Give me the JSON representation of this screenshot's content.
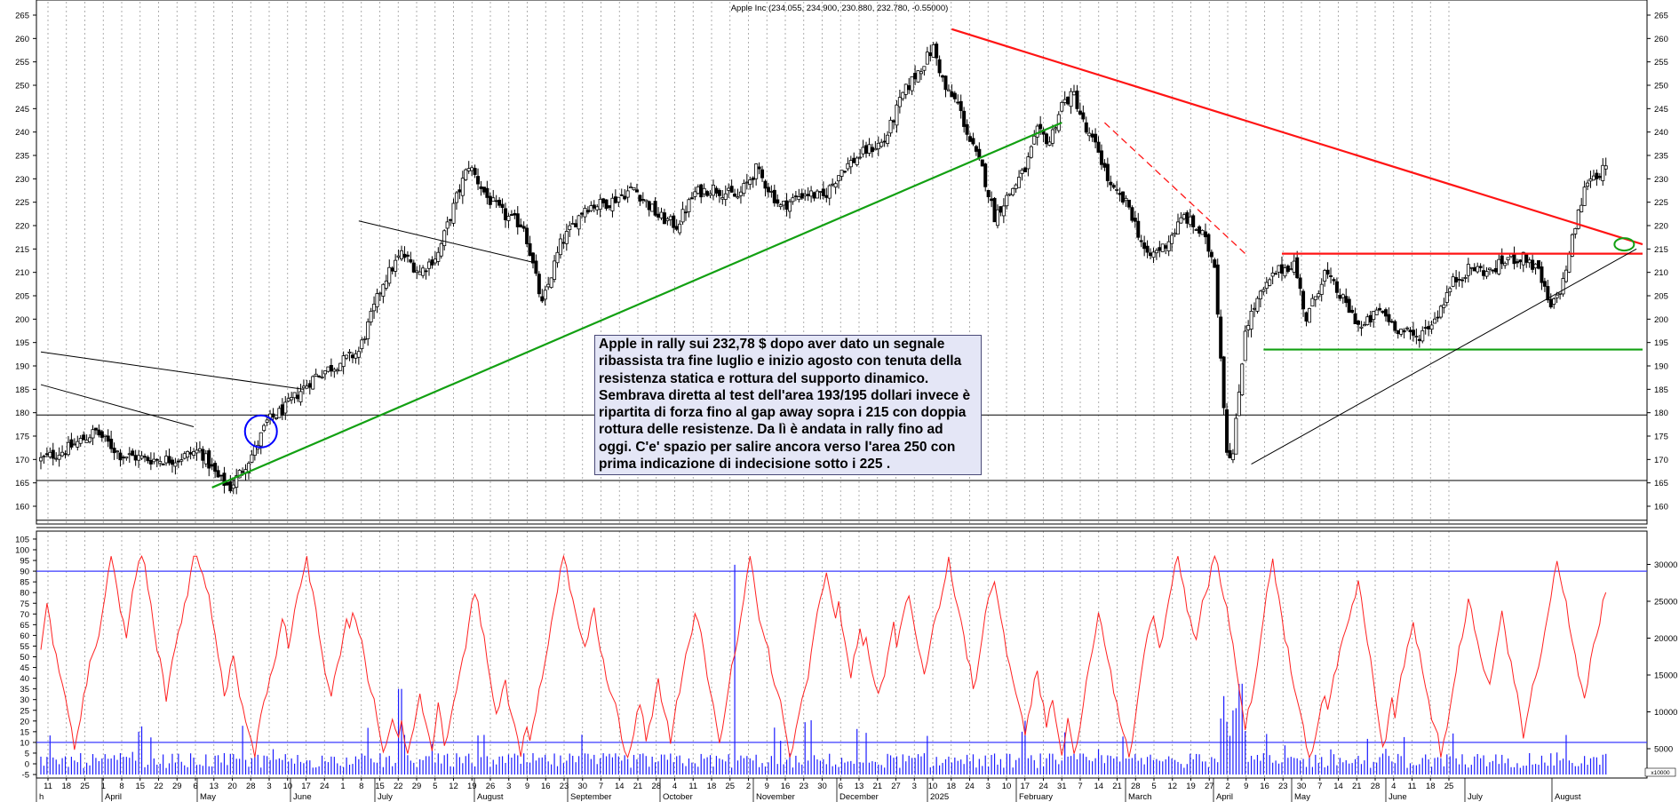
{
  "chart_data": {
    "type": "candlestick",
    "title": "Apple Inc (234.055, 234.900, 230.880, 232.780, -0.55000)",
    "price_axis": {
      "ylim": [
        155,
        267
      ],
      "ticks": [
        160,
        165,
        170,
        175,
        180,
        185,
        190,
        195,
        200,
        205,
        210,
        215,
        220,
        225,
        230,
        235,
        240,
        245,
        250,
        255,
        260,
        265
      ]
    },
    "oscillator_axis": {
      "left_ticks": [
        -5,
        0,
        5,
        10,
        15,
        20,
        25,
        30,
        35,
        40,
        45,
        50,
        55,
        60,
        65,
        70,
        75,
        80,
        85,
        90,
        95,
        100,
        105
      ],
      "right_ticks": [
        5000,
        10000,
        15000,
        20000,
        25000,
        30000
      ],
      "right_ticks_label": [
        "5000",
        "10000",
        "15000",
        "20000",
        "25000",
        "30000"
      ],
      "volume_scale_label": "x10000",
      "reference_levels": [
        10,
        90
      ]
    },
    "x_axis": {
      "day_labels": [
        "11",
        "18",
        "25",
        "1",
        "8",
        "15",
        "22",
        "29",
        "6",
        "13",
        "20",
        "28",
        "3",
        "10",
        "17",
        "24",
        "1",
        "8",
        "15",
        "22",
        "29",
        "5",
        "12",
        "19",
        "26",
        "3",
        "9",
        "16",
        "23",
        "30",
        "7",
        "14",
        "21",
        "28",
        "4",
        "11",
        "18",
        "25",
        "2",
        "9",
        "16",
        "23",
        "30",
        "6",
        "13",
        "21",
        "27",
        "3",
        "10",
        "18",
        "24",
        "3",
        "10",
        "17",
        "24",
        "31",
        "7",
        "14",
        "21",
        "28",
        "5",
        "12",
        "19",
        "27",
        "2",
        "9",
        "16",
        "23",
        "30",
        "7",
        "14",
        "21",
        "28",
        "4",
        "11",
        "18",
        "25"
      ],
      "month_labels": [
        "h",
        "April",
        "May",
        "June",
        "July",
        "August",
        "September",
        "October",
        "November",
        "December",
        "2025",
        "February",
        "March",
        "April",
        "May",
        "June",
        "July",
        "August"
      ]
    },
    "price_series": {
      "name": "Apple Inc",
      "close_path": [
        [
          0,
          170
        ],
        [
          8,
          172
        ],
        [
          18,
          176
        ],
        [
          26,
          171
        ],
        [
          36,
          170
        ],
        [
          44,
          170
        ],
        [
          52,
          172
        ],
        [
          58,
          166
        ],
        [
          62,
          164
        ],
        [
          66,
          168
        ],
        [
          70,
          172
        ],
        [
          74,
          178
        ],
        [
          80,
          181
        ],
        [
          84,
          184
        ],
        [
          90,
          188
        ],
        [
          96,
          190
        ],
        [
          104,
          193
        ],
        [
          112,
          208
        ],
        [
          118,
          214
        ],
        [
          124,
          210
        ],
        [
          130,
          214
        ],
        [
          136,
          226
        ],
        [
          140,
          233
        ],
        [
          146,
          226
        ],
        [
          152,
          222
        ],
        [
          158,
          220
        ],
        [
          164,
          203
        ],
        [
          170,
          216
        ],
        [
          178,
          224
        ],
        [
          186,
          225
        ],
        [
          194,
          228
        ],
        [
          202,
          222
        ],
        [
          208,
          220
        ],
        [
          214,
          227
        ],
        [
          220,
          228
        ],
        [
          228,
          226
        ],
        [
          234,
          232
        ],
        [
          242,
          224
        ],
        [
          250,
          227
        ],
        [
          256,
          226
        ],
        [
          262,
          232
        ],
        [
          270,
          236
        ],
        [
          276,
          238
        ],
        [
          282,
          248
        ],
        [
          288,
          254
        ],
        [
          292,
          258
        ],
        [
          296,
          249
        ],
        [
          300,
          246
        ],
        [
          304,
          238
        ],
        [
          308,
          232
        ],
        [
          312,
          222
        ],
        [
          318,
          228
        ],
        [
          322,
          232
        ],
        [
          326,
          240
        ],
        [
          330,
          238
        ],
        [
          334,
          246
        ],
        [
          338,
          248
        ],
        [
          342,
          240
        ],
        [
          346,
          236
        ],
        [
          350,
          228
        ],
        [
          356,
          224
        ],
        [
          362,
          213
        ],
        [
          368,
          216
        ],
        [
          374,
          222
        ],
        [
          380,
          218
        ],
        [
          384,
          212
        ],
        [
          388,
          172
        ],
        [
          390,
          171
        ],
        [
          394,
          198
        ],
        [
          398,
          204
        ],
        [
          404,
          210
        ],
        [
          410,
          212
        ],
        [
          414,
          200
        ],
        [
          420,
          210
        ],
        [
          426,
          204
        ],
        [
          432,
          198
        ],
        [
          438,
          202
        ],
        [
          444,
          198
        ],
        [
          450,
          196
        ],
        [
          456,
          200
        ],
        [
          462,
          208
        ],
        [
          468,
          211
        ],
        [
          474,
          210
        ],
        [
          480,
          213
        ],
        [
          486,
          213
        ],
        [
          490,
          210
        ],
        [
          494,
          202
        ],
        [
          498,
          208
        ],
        [
          502,
          220
        ],
        [
          506,
          230
        ],
        [
          512,
          232
        ]
      ]
    },
    "trendlines": [
      {
        "color": "#ff1414",
        "points": [
          [
            298,
            262
          ],
          [
            524,
            216
          ]
        ]
      },
      {
        "color": "#ff1414",
        "style": "dashed",
        "points": [
          [
            348,
            242
          ],
          [
            394,
            214
          ]
        ]
      },
      {
        "color": "#ff1414",
        "points": [
          [
            406,
            214
          ],
          [
            524,
            214
          ]
        ]
      },
      {
        "color": "#12a012",
        "points": [
          [
            400,
            193.5
          ],
          [
            524,
            193.5
          ]
        ]
      },
      {
        "color": "#12a012",
        "points": [
          [
            56,
            164
          ],
          [
            334,
            242
          ]
        ]
      },
      {
        "color": "#000000",
        "points": [
          [
            396,
            169
          ],
          [
            522,
            215
          ]
        ]
      },
      {
        "color": "#000000",
        "points": [
          [
            0,
            186
          ],
          [
            50,
            177
          ]
        ]
      },
      {
        "color": "#000000",
        "points": [
          [
            0,
            193
          ],
          [
            86,
            185
          ]
        ]
      },
      {
        "color": "#000000",
        "points": [
          [
            104,
            221
          ],
          [
            162,
            212
          ]
        ]
      }
    ],
    "horizontal_levels": [
      179.5,
      165.5,
      157
    ],
    "markers": [
      {
        "type": "circle",
        "color": "#0000ff",
        "x": 72,
        "y": 176
      },
      {
        "type": "ellipse",
        "color": "#12a012",
        "x": 518,
        "y": 216
      }
    ],
    "annotation": "Apple in rally sui 232,78 $ dopo aver dato un segnale ribassista tra fine luglio e inizio agosto con tenuta della resistenza statica e rottura del supporto dinamico. Sembrava diretta al test dell'area 193/195 dollari invece è ripartita di forza fino al gap away sopra i 215 con doppia rottura delle resistenze. Da lì è andata in rally fino ad oggi. C'e' spazio per salire ancora verso l'area 250 con prima indicazione di indecisione sotto i 225 ."
  },
  "colors": {
    "background": "#ffffff",
    "candle_body": "#000000",
    "oscillator_line": "#ff2020",
    "volume_bars": "#1c1cff",
    "reference_lines": "#3a3aff",
    "grid": "#9a9a9a",
    "note_background": "#e4e6f6"
  }
}
